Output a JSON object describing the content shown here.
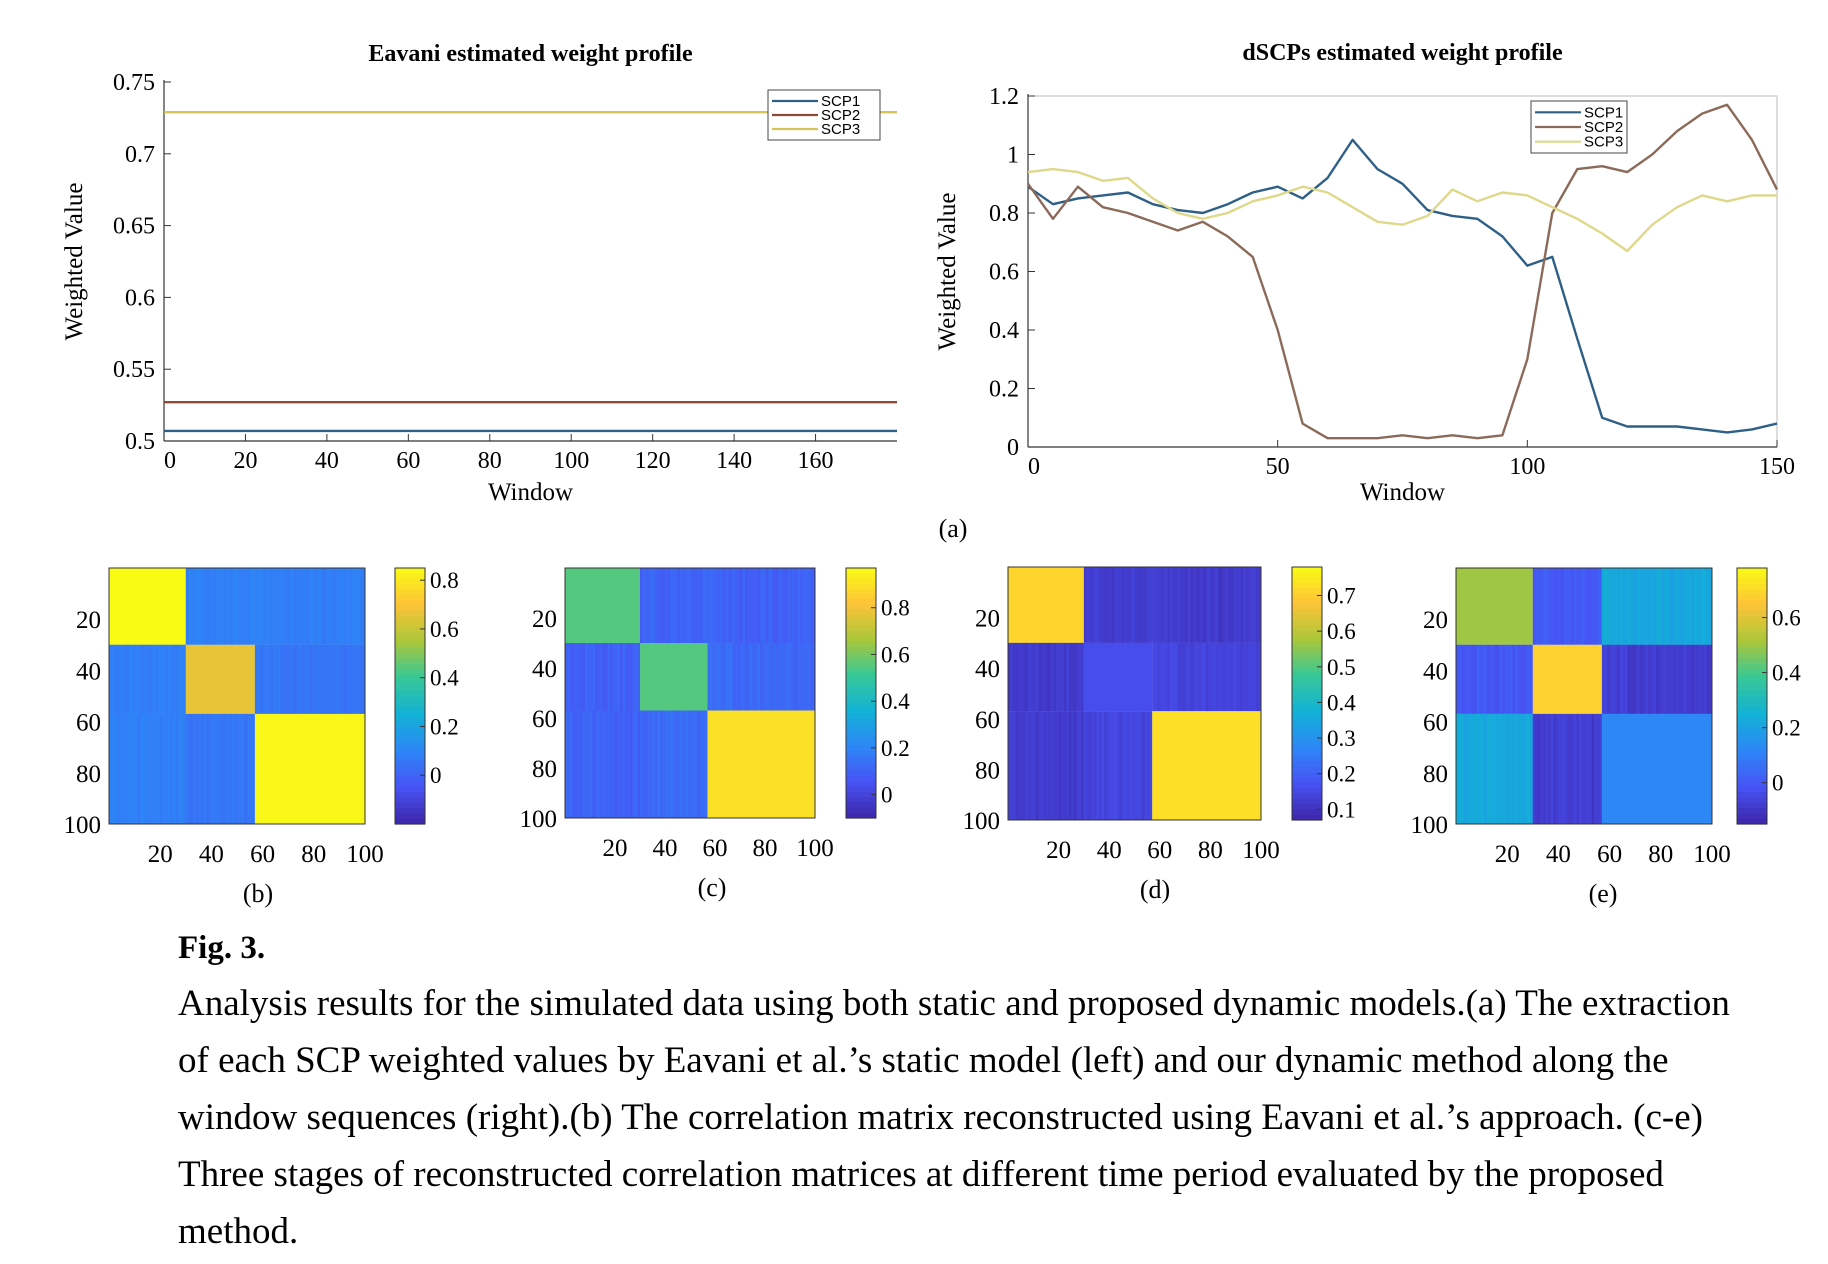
{
  "panel_label_a": "(a)",
  "caption": {
    "title": "Fig. 3.",
    "text": "Analysis results for the simulated data using both static and proposed dynamic models.(a) The extraction of each SCP weighted values by Eavani et al.’s static model (left) and our dynamic method along the window sequences (right).(b) The correlation matrix reconstructed using Eavani et al.’s approach. (c-e) Three stages of reconstructed correlation matrices at different time period evaluated by the proposed method."
  },
  "colors": {
    "scp1": "#2e5f86",
    "scp2": "#8e4a38",
    "scp3": "#d6c35a",
    "scp3_right": "#ded98a",
    "scp2_right": "#8c6a5a"
  },
  "chart_data": [
    {
      "id": "eavani",
      "type": "line",
      "title": "Eavani estimated weight profile",
      "xlabel": "Window",
      "ylabel": "Weighted Value",
      "xlim": [
        0,
        180
      ],
      "ylim": [
        0.5,
        0.75
      ],
      "xticks": [
        0,
        20,
        40,
        60,
        80,
        100,
        120,
        140,
        160
      ],
      "yticks": [
        0.5,
        0.55,
        0.6,
        0.65,
        0.7,
        0.75
      ],
      "ytick_labels": [
        "0.5",
        "0.55",
        "0.6",
        "0.65",
        "0.7",
        "0.75"
      ],
      "legend": "top-right",
      "series": [
        {
          "name": "SCP1",
          "x": [
            0,
            180
          ],
          "y": [
            0.507,
            0.507
          ]
        },
        {
          "name": "SCP2",
          "x": [
            0,
            180
          ],
          "y": [
            0.527,
            0.527
          ]
        },
        {
          "name": "SCP3",
          "x": [
            0,
            180
          ],
          "y": [
            0.729,
            0.729
          ]
        }
      ]
    },
    {
      "id": "dscps",
      "type": "line",
      "title": "dSCPs estimated weight profile",
      "xlabel": "Window",
      "ylabel": "Weighted Value",
      "xlim": [
        0,
        150
      ],
      "ylim": [
        0,
        1.2
      ],
      "xticks": [
        0,
        50,
        100,
        150
      ],
      "yticks": [
        0,
        0.2,
        0.4,
        0.6,
        0.8,
        1,
        1.2
      ],
      "ytick_labels": [
        "0",
        "0.2",
        "0.4",
        "0.6",
        "0.8",
        "1",
        "1.2"
      ],
      "legend": "top-right",
      "series": [
        {
          "name": "SCP1",
          "x": [
            0,
            5,
            10,
            15,
            20,
            25,
            30,
            35,
            40,
            45,
            50,
            55,
            60,
            65,
            70,
            75,
            80,
            85,
            90,
            95,
            100,
            105,
            110,
            115,
            120,
            125,
            130,
            135,
            140,
            145,
            150
          ],
          "y": [
            0.89,
            0.83,
            0.85,
            0.86,
            0.87,
            0.83,
            0.81,
            0.8,
            0.83,
            0.87,
            0.89,
            0.85,
            0.92,
            1.05,
            0.95,
            0.9,
            0.81,
            0.79,
            0.78,
            0.72,
            0.62,
            0.65,
            0.37,
            0.1,
            0.07,
            0.07,
            0.07,
            0.06,
            0.05,
            0.06,
            0.08
          ]
        },
        {
          "name": "SCP2",
          "x": [
            0,
            5,
            10,
            15,
            20,
            25,
            30,
            35,
            40,
            45,
            50,
            55,
            60,
            65,
            70,
            75,
            80,
            85,
            90,
            95,
            100,
            105,
            110,
            115,
            120,
            125,
            130,
            135,
            140,
            145,
            150
          ],
          "y": [
            0.9,
            0.78,
            0.89,
            0.82,
            0.8,
            0.77,
            0.74,
            0.77,
            0.72,
            0.65,
            0.4,
            0.08,
            0.03,
            0.03,
            0.03,
            0.04,
            0.03,
            0.04,
            0.03,
            0.04,
            0.3,
            0.8,
            0.95,
            0.96,
            0.94,
            1.0,
            1.08,
            1.14,
            1.17,
            1.05,
            0.88
          ]
        },
        {
          "name": "SCP3",
          "x": [
            0,
            5,
            10,
            15,
            20,
            25,
            30,
            35,
            40,
            45,
            50,
            55,
            60,
            65,
            70,
            75,
            80,
            85,
            90,
            95,
            100,
            105,
            110,
            115,
            120,
            125,
            130,
            135,
            140,
            145,
            150
          ],
          "y": [
            0.94,
            0.95,
            0.94,
            0.91,
            0.92,
            0.85,
            0.8,
            0.78,
            0.8,
            0.84,
            0.86,
            0.89,
            0.87,
            0.82,
            0.77,
            0.76,
            0.79,
            0.88,
            0.84,
            0.87,
            0.86,
            0.82,
            0.78,
            0.73,
            0.67,
            0.76,
            0.82,
            0.86,
            0.84,
            0.86,
            0.86
          ]
        }
      ]
    },
    {
      "id": "matrix_b",
      "type": "heatmap",
      "label": "(b)",
      "xticks": [
        20,
        40,
        60,
        80,
        100
      ],
      "yticks": [
        20,
        40,
        60,
        80,
        100
      ],
      "n": 100,
      "blocks": [
        0,
        30,
        57,
        100
      ],
      "block_values": [
        [
          0.86,
          0.08,
          0.08
        ],
        [
          0.08,
          0.66,
          0.05
        ],
        [
          0.08,
          0.05,
          0.84
        ]
      ],
      "stripe_amp": 0.03,
      "colorbar": {
        "min": -0.2,
        "max": 0.85,
        "ticks": [
          0,
          0.2,
          0.4,
          0.6,
          0.8
        ],
        "tick_labels": [
          "0",
          "0.2",
          "0.4",
          "0.6",
          "0.8"
        ]
      }
    },
    {
      "id": "matrix_c",
      "type": "heatmap",
      "label": "(c)",
      "xticks": [
        20,
        40,
        60,
        80,
        100
      ],
      "yticks": [
        20,
        40,
        60,
        80,
        100
      ],
      "n": 100,
      "blocks": [
        0,
        30,
        57,
        100
      ],
      "block_values": [
        [
          0.55,
          0.1,
          0.1
        ],
        [
          0.1,
          0.55,
          0.12
        ],
        [
          0.1,
          0.12,
          0.9
        ]
      ],
      "stripe_amp": 0.05,
      "colorbar": {
        "min": -0.1,
        "max": 0.97,
        "ticks": [
          0,
          0.2,
          0.4,
          0.6,
          0.8
        ],
        "tick_labels": [
          "0",
          "0.2",
          "0.4",
          "0.6",
          "0.8"
        ]
      }
    },
    {
      "id": "matrix_d",
      "type": "heatmap",
      "label": "(d)",
      "xticks": [
        20,
        40,
        60,
        80,
        100
      ],
      "yticks": [
        20,
        40,
        60,
        80,
        100
      ],
      "n": 100,
      "blocks": [
        0,
        30,
        57,
        100
      ],
      "block_values": [
        [
          0.71,
          0.12,
          0.12
        ],
        [
          0.12,
          0.16,
          0.14
        ],
        [
          0.12,
          0.14,
          0.73
        ]
      ],
      "stripe_amp": 0.025,
      "colorbar": {
        "min": 0.07,
        "max": 0.78,
        "ticks": [
          0.1,
          0.2,
          0.3,
          0.4,
          0.5,
          0.6,
          0.7
        ],
        "tick_labels": [
          "0.1",
          "0.2",
          "0.3",
          "0.4",
          "0.5",
          "0.6",
          "0.7"
        ]
      }
    },
    {
      "id": "matrix_e",
      "type": "heatmap",
      "label": "(e)",
      "xticks": [
        20,
        40,
        60,
        80,
        100
      ],
      "yticks": [
        20,
        40,
        60,
        80,
        100
      ],
      "n": 100,
      "blocks": [
        0,
        30,
        57,
        100
      ],
      "block_values": [
        [
          0.5,
          0.0,
          0.22
        ],
        [
          0.0,
          0.68,
          -0.08
        ],
        [
          0.22,
          -0.08,
          0.12
        ]
      ],
      "stripe_amp": 0.04,
      "colorbar": {
        "min": -0.15,
        "max": 0.78,
        "ticks": [
          0,
          0.2,
          0.4,
          0.6
        ],
        "tick_labels": [
          "0",
          "0.2",
          "0.4",
          "0.6"
        ]
      }
    }
  ]
}
